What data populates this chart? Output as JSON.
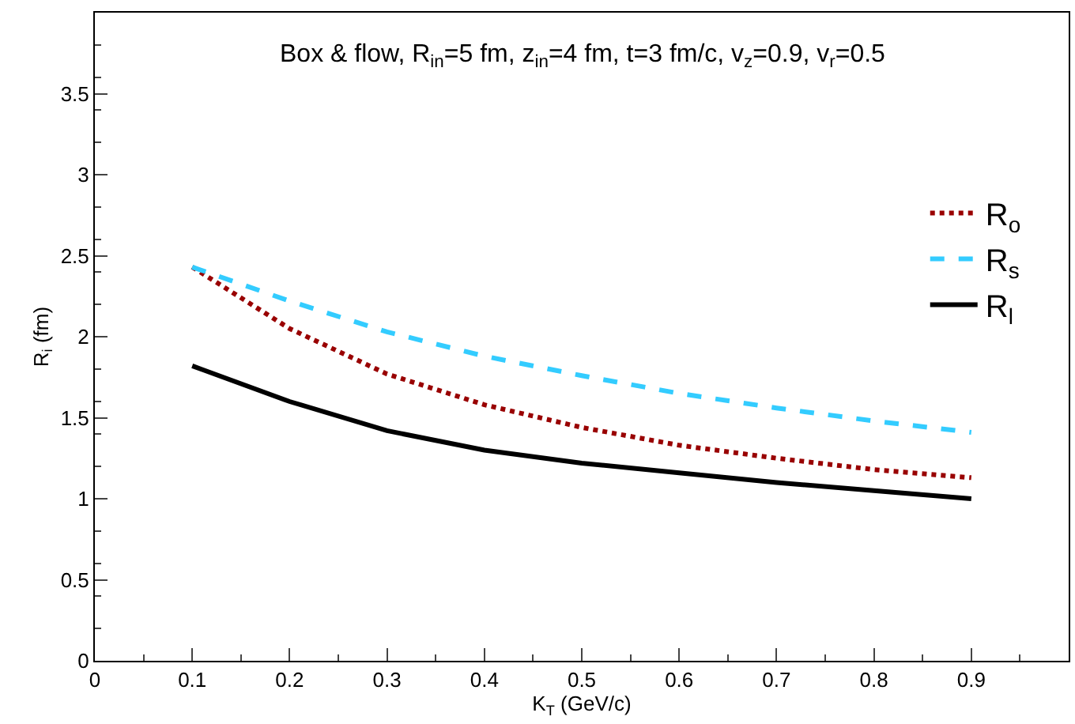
{
  "chart_data": {
    "type": "line",
    "title": "Box & flow, R$_{in}$=5 fm, z$_{in}$=4 fm, t=3 fm/c, v$_{z}$=0.9, v$_{r}$=0.5",
    "xlabel": "K$_{T}$ (GeV/c)",
    "ylabel": "R$_{i}$ (fm)",
    "x": [
      0.1,
      0.2,
      0.3,
      0.4,
      0.5,
      0.6,
      0.7,
      0.8,
      0.9
    ],
    "series": [
      {
        "name": "R$_{o}$",
        "color": "#990000",
        "line_style": "dotted",
        "values": [
          2.43,
          2.05,
          1.77,
          1.58,
          1.44,
          1.33,
          1.25,
          1.18,
          1.13
        ]
      },
      {
        "name": "R$_{s}$",
        "color": "#33ccff",
        "line_style": "dashed",
        "values": [
          2.43,
          2.22,
          2.03,
          1.88,
          1.76,
          1.65,
          1.56,
          1.48,
          1.41
        ]
      },
      {
        "name": "R$_{l}$",
        "color": "#000000",
        "line_style": "solid",
        "values": [
          1.82,
          1.6,
          1.42,
          1.3,
          1.22,
          1.16,
          1.1,
          1.05,
          1.0
        ]
      }
    ],
    "xlim": [
      0,
      1
    ],
    "xticks": [
      0,
      0.1,
      0.2,
      0.3,
      0.4,
      0.5,
      0.6,
      0.7,
      0.8,
      0.9
    ],
    "ylim": [
      0,
      4
    ],
    "yticks": [
      0,
      0.5,
      1,
      1.5,
      2,
      2.5,
      3,
      3.5
    ],
    "legend": "right",
    "marker": "none"
  }
}
